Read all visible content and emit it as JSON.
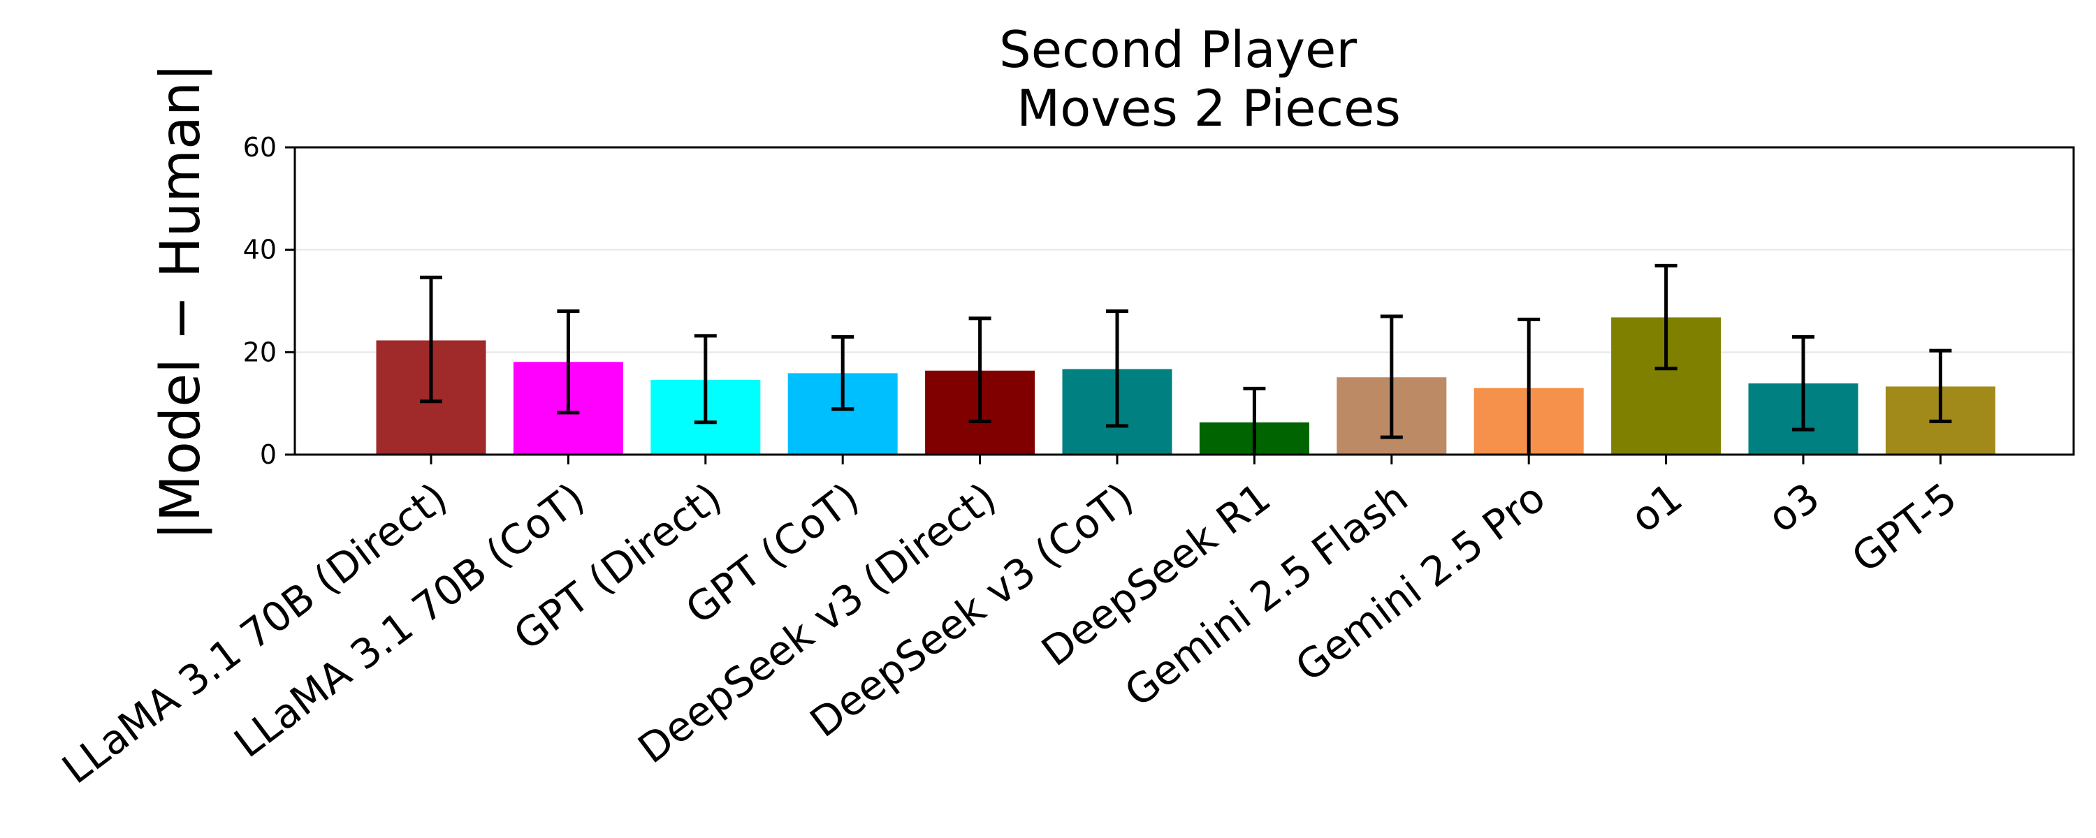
{
  "chart_data": {
    "type": "bar",
    "title": [
      "Second Player",
      "Moves 2 Pieces"
    ],
    "xlabel": "",
    "ylabel": "|Model − Human|",
    "ylim": [
      0,
      60
    ],
    "yticks": [
      0,
      20,
      40,
      60
    ],
    "grid": "horizontal",
    "categories": [
      "LLaMA 3.1 70B (Direct)",
      "LLaMA 3.1 70B (CoT)",
      "GPT (Direct)",
      "GPT (CoT)",
      "DeepSeek v3 (Direct)",
      "DeepSeek v3 (CoT)",
      "DeepSeek R1",
      "Gemini 2.5 Flash",
      "Gemini 2.5 Pro",
      "o1",
      "o3",
      "GPT-5"
    ],
    "values": [
      22.3,
      18.1,
      14.6,
      15.9,
      16.4,
      16.7,
      6.3,
      15.1,
      13.0,
      26.8,
      13.9,
      13.3
    ],
    "error_low": [
      10.4,
      8.2,
      6.3,
      8.9,
      6.5,
      5.6,
      0.0,
      3.4,
      0.0,
      16.8,
      4.9,
      6.5
    ],
    "error_high": [
      34.6,
      28.0,
      23.2,
      23.0,
      26.6,
      28.0,
      12.9,
      27.0,
      26.4,
      36.9,
      23.0,
      20.3
    ],
    "colors": [
      "#a0292a",
      "#ff00ff",
      "#00ffff",
      "#00bfff",
      "#800000",
      "#008080",
      "#006400",
      "#bc8a64",
      "#f5914a",
      "#808000",
      "#008080",
      "#a18a1a"
    ]
  }
}
